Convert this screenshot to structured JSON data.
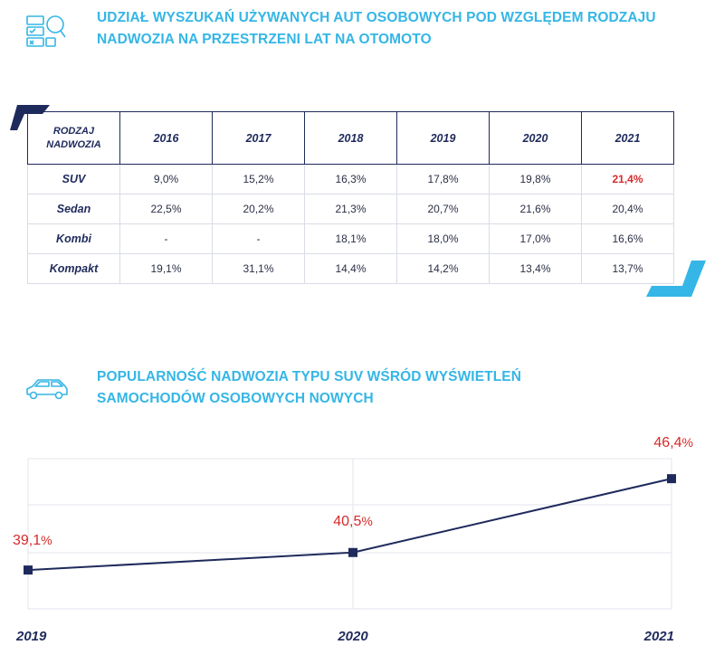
{
  "section1": {
    "title_line1": "UDZIAŁ WYSZUKAŃ UŻYWANYCH AUT OSOBOWYCH POD WZGLĘDEM RODZAJU",
    "title_line2": "NADWOZIA NA PRZESTRZENI LAT NA OTOMOTO",
    "icon": "search-filter-icon"
  },
  "table": {
    "corner_label_line1": "RODZAJ",
    "corner_label_line2": "NADWOZIA",
    "columns": [
      "2016",
      "2017",
      "2018",
      "2019",
      "2020",
      "2021"
    ],
    "rows": [
      {
        "label": "SUV",
        "values": [
          "9,0%",
          "15,2%",
          "16,3%",
          "17,8%",
          "19,8%",
          "21,4%"
        ],
        "highlight_index": 5
      },
      {
        "label": "Sedan",
        "values": [
          "22,5%",
          "20,2%",
          "21,3%",
          "20,7%",
          "21,6%",
          "20,4%"
        ]
      },
      {
        "label": "Kombi",
        "values": [
          "-",
          "-",
          "18,1%",
          "18,0%",
          "17,0%",
          "16,6%"
        ]
      },
      {
        "label": "Kompakt",
        "values": [
          "19,1%",
          "31,1%",
          "14,4%",
          "14,2%",
          "13,4%",
          "13,7%"
        ]
      }
    ],
    "highlight_color": "#d62a2a",
    "accent_color": "#35b6e6",
    "dark_color": "#1f2a5c"
  },
  "section2": {
    "title_line1": "POPULARNOŚĆ NADWOZIA TYPU SUV WŚRÓD WYŚWIETLEŃ",
    "title_line2": "SAMOCHODÓW OSOBOWYCH NOWYCH",
    "icon": "car-icon"
  },
  "chart_data": {
    "type": "line",
    "x": [
      "2019",
      "2020",
      "2021"
    ],
    "series": [
      {
        "values": [
          39.1,
          40.5,
          46.4
        ],
        "labels": [
          "39,1",
          "40,5",
          "46,4"
        ],
        "color": "#1f2a5c"
      }
    ],
    "value_suffix": "%",
    "label_color": "#d62a2a",
    "ylim": [
      36,
      48
    ],
    "grid": true
  }
}
